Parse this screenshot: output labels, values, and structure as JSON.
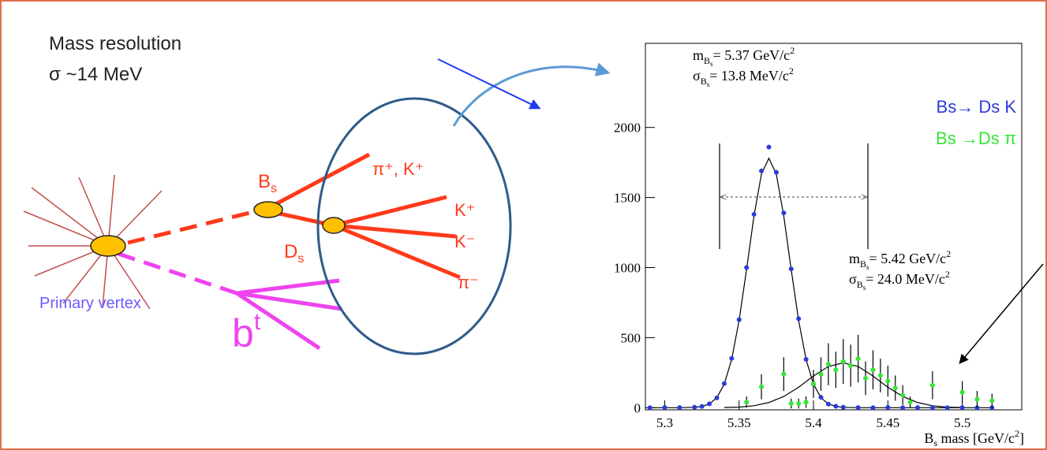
{
  "header": {
    "line1": "Mass  resolution",
    "line2": "σ ~14 MeV"
  },
  "diagram": {
    "bs": {
      "symbol": "B",
      "subscript": "s"
    },
    "ds": {
      "symbol": "D",
      "subscript": "s"
    },
    "products": [
      "π⁺, K⁺",
      "K⁺",
      "K⁻",
      "π⁻"
    ],
    "primary_vertex": "Primary vertex",
    "b": {
      "symbol": "b",
      "superscript": "t"
    }
  },
  "chart_data": {
    "type": "scatter",
    "xlim": [
      5.287,
      5.54
    ],
    "ylim": [
      -15,
      2600
    ],
    "xticks": [
      5.3,
      5.35,
      5.4,
      5.45,
      5.5
    ],
    "yticks": [
      0,
      500,
      1000,
      1500,
      2000
    ],
    "legend": "upper right",
    "x_label": {
      "symbol": "B",
      "subscript": "s",
      "text": " mass [GeV/c",
      "exponent": "2",
      "end": "]"
    },
    "annotations": [
      {
        "symbol": "m",
        "subscript": "B",
        "subsubscript": "s",
        "text": "=  5.37 GeV/c",
        "exponent": "2"
      },
      {
        "symbol": "σ",
        "subscript": "B",
        "subsubscript": "s",
        "text": "=  13.8 MeV/c",
        "exponent": "2"
      },
      {
        "symbol": "m",
        "subscript": "B",
        "subsubscript": "s",
        "text": "= 5.42 GeV/c",
        "exponent": "2"
      },
      {
        "symbol": "σ",
        "subscript": "B",
        "subsubscript": "s",
        "text": "=  24.0 MeV/c",
        "exponent": "2"
      }
    ],
    "series": [
      {
        "name": "Bs→ Ds K",
        "color": "#2b3bd9",
        "style": "points",
        "x": [
          5.29,
          5.3,
          5.31,
          5.32,
          5.325,
          5.33,
          5.335,
          5.34,
          5.345,
          5.35,
          5.355,
          5.36,
          5.365,
          5.37,
          5.375,
          5.38,
          5.385,
          5.39,
          5.395,
          5.4,
          5.405,
          5.41,
          5.415,
          5.42,
          5.43,
          5.44,
          5.45,
          5.46,
          5.47,
          5.48,
          5.49,
          5.5,
          5.51,
          5.52
        ],
        "values": [
          0,
          2,
          1,
          3,
          9,
          28,
          70,
          172,
          352,
          628,
          1000,
          1380,
          1690,
          1860,
          1680,
          1390,
          990,
          635,
          345,
          168,
          74,
          26,
          10,
          3,
          1,
          0,
          2,
          0,
          1,
          0,
          0,
          1,
          0,
          0
        ]
      },
      {
        "name": "Bs →Ds π",
        "color": "#33e633",
        "style": "points",
        "x": [
          5.355,
          5.365,
          5.38,
          5.385,
          5.39,
          5.395,
          5.4,
          5.405,
          5.41,
          5.415,
          5.42,
          5.425,
          5.43,
          5.435,
          5.44,
          5.445,
          5.45,
          5.455,
          5.46,
          5.465,
          5.48,
          5.5,
          5.51,
          5.52
        ],
        "values": [
          40,
          150,
          240,
          30,
          30,
          40,
          170,
          240,
          310,
          270,
          330,
          300,
          350,
          210,
          270,
          230,
          190,
          140,
          90,
          40,
          160,
          110,
          60,
          50
        ],
        "errors": [
          40,
          90,
          120,
          35,
          35,
          40,
          100,
          120,
          150,
          130,
          160,
          150,
          170,
          120,
          140,
          120,
          110,
          90,
          70,
          40,
          100,
          80,
          60,
          50
        ]
      },
      {
        "color": "#000000",
        "style": "line",
        "x": [
          5.29,
          5.31,
          5.32,
          5.325,
          5.33,
          5.335,
          5.34,
          5.345,
          5.35,
          5.355,
          5.36,
          5.365,
          5.37,
          5.375,
          5.38,
          5.385,
          5.39,
          5.395,
          5.4,
          5.405,
          5.41,
          5.415,
          5.42,
          5.43,
          5.52
        ],
        "values": [
          0,
          0,
          3,
          9,
          27,
          71,
          168,
          345,
          623,
          986,
          1369,
          1667,
          1780,
          1667,
          1369,
          986,
          623,
          345,
          168,
          71,
          27,
          9,
          3,
          0,
          0
        ]
      },
      {
        "color": "#000000",
        "style": "line",
        "x": [
          5.34,
          5.35,
          5.36,
          5.37,
          5.38,
          5.39,
          5.4,
          5.41,
          5.42,
          5.43,
          5.44,
          5.45,
          5.46,
          5.47,
          5.48,
          5.49,
          5.5
        ],
        "values": [
          1,
          4,
          14,
          37,
          80,
          146,
          226,
          294,
          320,
          294,
          226,
          146,
          80,
          37,
          14,
          4,
          1
        ]
      }
    ]
  }
}
